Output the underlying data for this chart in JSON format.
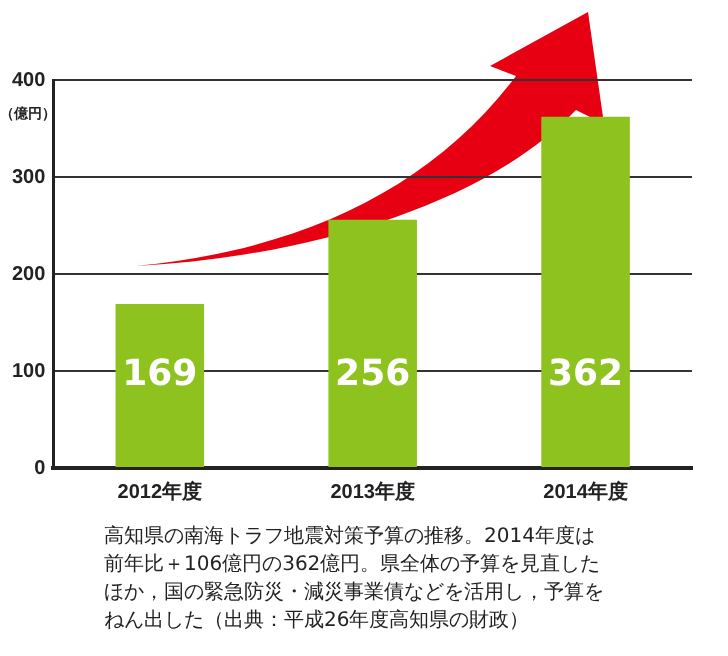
{
  "chart_data": {
    "type": "bar",
    "ylabel": "（億円）",
    "categories": [
      "2012年度",
      "2013年度",
      "2014年度"
    ],
    "values": [
      169,
      256,
      362
    ],
    "color": "#8dc21f",
    "ylim": [
      0,
      400
    ],
    "yticks": [
      0,
      100,
      200,
      300,
      400
    ],
    "grid": "y",
    "data_labels": true,
    "annotations": [
      "高知県の南海トラフ地震対策予算の推移。2014年度は前年比＋106億円の362億円。県全体の予算を見直したほか，国の緊急防災・減災事業債などを活用し，予算をねん出した（出典：平成26年度高知県の財政）"
    ]
  }
}
